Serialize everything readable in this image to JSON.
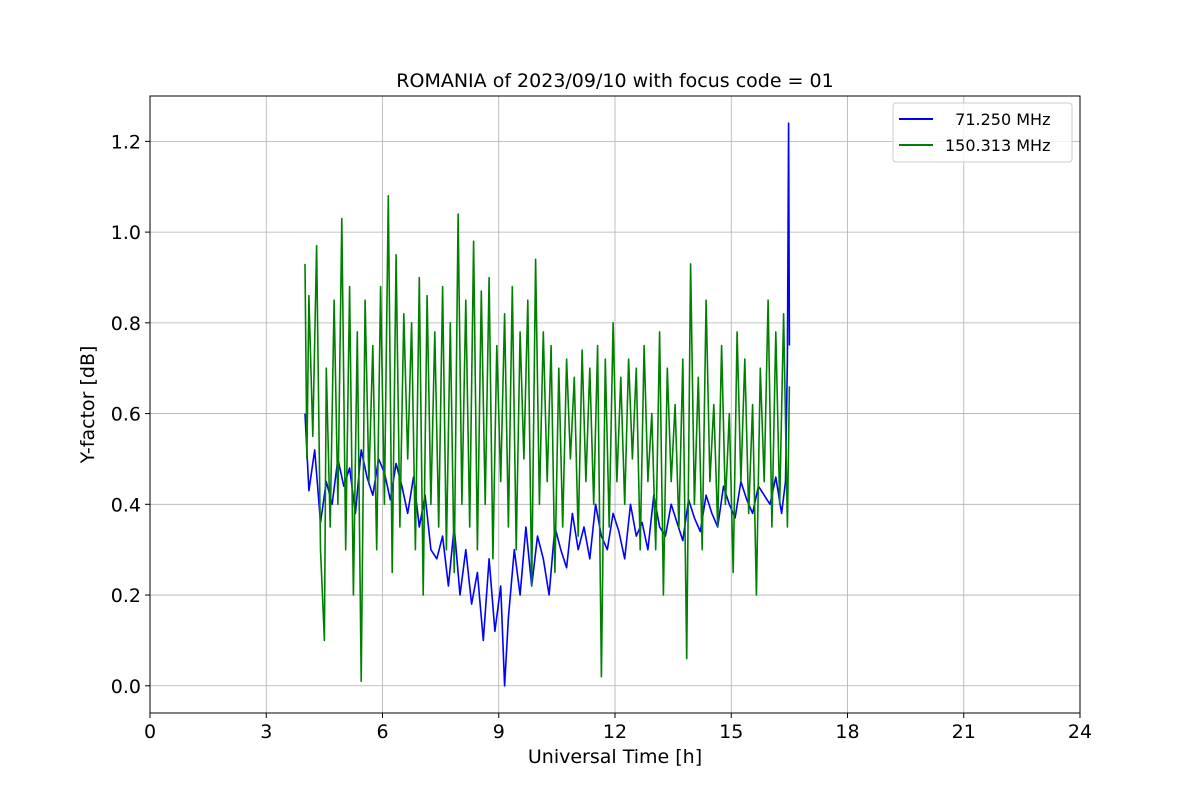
{
  "chart_data": {
    "type": "line",
    "title": "ROMANIA of 2023/09/10 with focus code = 01",
    "xlabel": "Universal Time [h]",
    "ylabel": "Y-factor [dB]",
    "xlim": [
      0,
      24
    ],
    "ylim": [
      -0.06,
      1.3
    ],
    "xticks": [
      0,
      3,
      6,
      9,
      12,
      15,
      18,
      21,
      24
    ],
    "xtick_labels": [
      "0",
      "3",
      "6",
      "9",
      "12",
      "15",
      "18",
      "21",
      "24"
    ],
    "yticks": [
      0.0,
      0.2,
      0.4,
      0.6,
      0.8,
      1.0,
      1.2
    ],
    "ytick_labels": [
      "0.0",
      "0.2",
      "0.4",
      "0.6",
      "0.8",
      "1.0",
      "1.2"
    ],
    "grid": true,
    "legend_position": "top-right",
    "series": [
      {
        "name": "  71.250 MHz",
        "color": "#0000ff",
        "x": [
          4.0,
          4.1,
          4.25,
          4.4,
          4.55,
          4.7,
          4.85,
          5.0,
          5.15,
          5.3,
          5.45,
          5.6,
          5.75,
          5.9,
          6.05,
          6.2,
          6.35,
          6.5,
          6.65,
          6.8,
          6.95,
          7.1,
          7.25,
          7.4,
          7.55,
          7.7,
          7.85,
          8.0,
          8.15,
          8.3,
          8.45,
          8.6,
          8.75,
          8.9,
          9.05,
          9.15,
          9.25,
          9.4,
          9.55,
          9.7,
          9.85,
          10.0,
          10.15,
          10.3,
          10.45,
          10.6,
          10.75,
          10.9,
          11.05,
          11.2,
          11.35,
          11.5,
          11.65,
          11.8,
          11.95,
          12.1,
          12.25,
          12.4,
          12.55,
          12.7,
          12.85,
          13.0,
          13.15,
          13.3,
          13.45,
          13.6,
          13.75,
          13.9,
          14.05,
          14.2,
          14.35,
          14.5,
          14.65,
          14.8,
          14.95,
          15.1,
          15.25,
          15.4,
          15.55,
          15.7,
          15.85,
          16.0,
          16.15,
          16.3,
          16.4,
          16.45,
          16.48,
          16.5
        ],
        "y": [
          0.6,
          0.43,
          0.52,
          0.36,
          0.45,
          0.4,
          0.5,
          0.44,
          0.48,
          0.38,
          0.52,
          0.46,
          0.42,
          0.5,
          0.47,
          0.41,
          0.49,
          0.44,
          0.38,
          0.46,
          0.35,
          0.42,
          0.3,
          0.28,
          0.33,
          0.22,
          0.35,
          0.2,
          0.3,
          0.18,
          0.25,
          0.1,
          0.28,
          0.12,
          0.22,
          0.0,
          0.15,
          0.3,
          0.2,
          0.35,
          0.22,
          0.33,
          0.28,
          0.2,
          0.35,
          0.3,
          0.26,
          0.38,
          0.3,
          0.35,
          0.28,
          0.4,
          0.33,
          0.3,
          0.38,
          0.34,
          0.28,
          0.4,
          0.33,
          0.36,
          0.3,
          0.42,
          0.35,
          0.33,
          0.4,
          0.36,
          0.32,
          0.41,
          0.37,
          0.34,
          0.42,
          0.38,
          0.35,
          0.44,
          0.4,
          0.37,
          0.45,
          0.41,
          0.38,
          0.44,
          0.42,
          0.4,
          0.46,
          0.38,
          0.45,
          0.72,
          1.24,
          0.75
        ]
      },
      {
        "name": "150.313 MHz",
        "color": "#008000",
        "x": [
          4.0,
          4.05,
          4.1,
          4.2,
          4.3,
          4.4,
          4.5,
          4.55,
          4.65,
          4.75,
          4.85,
          4.95,
          5.05,
          5.15,
          5.25,
          5.35,
          5.45,
          5.55,
          5.65,
          5.75,
          5.85,
          5.95,
          6.05,
          6.15,
          6.25,
          6.35,
          6.45,
          6.55,
          6.65,
          6.75,
          6.85,
          6.95,
          7.05,
          7.15,
          7.25,
          7.35,
          7.45,
          7.55,
          7.65,
          7.75,
          7.85,
          7.95,
          8.05,
          8.15,
          8.25,
          8.35,
          8.45,
          8.55,
          8.65,
          8.75,
          8.85,
          8.95,
          9.05,
          9.15,
          9.25,
          9.35,
          9.45,
          9.55,
          9.65,
          9.75,
          9.85,
          9.95,
          10.05,
          10.15,
          10.25,
          10.35,
          10.45,
          10.55,
          10.65,
          10.75,
          10.85,
          10.95,
          11.05,
          11.15,
          11.25,
          11.35,
          11.45,
          11.55,
          11.65,
          11.75,
          11.85,
          11.95,
          12.05,
          12.15,
          12.25,
          12.35,
          12.45,
          12.55,
          12.65,
          12.75,
          12.85,
          12.95,
          13.05,
          13.15,
          13.25,
          13.35,
          13.45,
          13.55,
          13.65,
          13.75,
          13.85,
          13.95,
          14.05,
          14.15,
          14.25,
          14.35,
          14.45,
          14.55,
          14.65,
          14.75,
          14.85,
          14.95,
          15.05,
          15.15,
          15.25,
          15.35,
          15.45,
          15.55,
          15.65,
          15.75,
          15.85,
          15.95,
          16.05,
          16.15,
          16.25,
          16.35,
          16.45,
          16.5
        ],
        "y": [
          0.93,
          0.5,
          0.86,
          0.55,
          0.97,
          0.3,
          0.1,
          0.7,
          0.35,
          0.85,
          0.4,
          1.03,
          0.3,
          0.88,
          0.2,
          0.78,
          0.01,
          0.85,
          0.45,
          0.75,
          0.3,
          0.88,
          0.4,
          1.08,
          0.25,
          0.95,
          0.35,
          0.82,
          0.5,
          0.8,
          0.3,
          0.9,
          0.2,
          0.86,
          0.4,
          0.78,
          0.35,
          0.88,
          0.3,
          0.8,
          0.25,
          1.04,
          0.4,
          0.85,
          0.35,
          0.98,
          0.3,
          0.87,
          0.4,
          0.9,
          0.28,
          0.75,
          0.45,
          0.82,
          0.35,
          0.88,
          0.3,
          0.78,
          0.5,
          0.85,
          0.22,
          0.94,
          0.4,
          0.78,
          0.45,
          0.75,
          0.25,
          0.7,
          0.35,
          0.72,
          0.5,
          0.68,
          0.33,
          0.74,
          0.45,
          0.7,
          0.4,
          0.75,
          0.02,
          0.72,
          0.35,
          0.8,
          0.45,
          0.68,
          0.4,
          0.72,
          0.5,
          0.7,
          0.3,
          0.75,
          0.45,
          0.6,
          0.3,
          0.78,
          0.2,
          0.7,
          0.45,
          0.62,
          0.35,
          0.72,
          0.06,
          0.93,
          0.4,
          0.68,
          0.3,
          0.85,
          0.45,
          0.62,
          0.35,
          0.75,
          0.4,
          0.6,
          0.25,
          0.78,
          0.45,
          0.72,
          0.38,
          0.62,
          0.2,
          0.7,
          0.45,
          0.85,
          0.35,
          0.78,
          0.4,
          0.82,
          0.35,
          0.66
        ]
      }
    ]
  }
}
